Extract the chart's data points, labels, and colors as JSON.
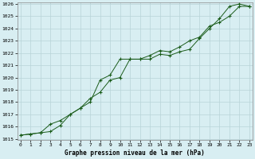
{
  "xlabel": "Graphe pression niveau de la mer (hPa)",
  "bg_color": "#d8eef2",
  "grid_color": "#b8d4d8",
  "line_color": "#1a5c1a",
  "ylim": [
    1015,
    1026
  ],
  "xlim": [
    0,
    23
  ],
  "yticks": [
    1015,
    1016,
    1017,
    1018,
    1019,
    1020,
    1021,
    1022,
    1023,
    1024,
    1025,
    1026
  ],
  "xticks": [
    0,
    1,
    2,
    3,
    4,
    5,
    6,
    7,
    8,
    9,
    10,
    11,
    12,
    13,
    14,
    15,
    16,
    17,
    18,
    19,
    20,
    21,
    22,
    23
  ],
  "series1": [
    1015.3,
    1015.4,
    1015.5,
    1015.6,
    1016.1,
    1017.0,
    1017.5,
    1018.0,
    1019.8,
    1020.2,
    1021.5,
    1021.5,
    1021.5,
    1021.5,
    1021.9,
    1021.8,
    1022.1,
    1022.3,
    1023.2,
    1024.0,
    1024.8,
    1025.8,
    1026.0,
    1025.8
  ],
  "series2": [
    1015.3,
    1015.4,
    1015.5,
    1016.2,
    1016.5,
    1017.0,
    1017.5,
    1018.3,
    1018.8,
    1019.8,
    1020.0,
    1021.5,
    1021.5,
    1021.8,
    1022.2,
    1022.1,
    1022.5,
    1023.0,
    1023.3,
    1024.2,
    1024.5,
    1025.0,
    1025.8,
    1025.8
  ]
}
